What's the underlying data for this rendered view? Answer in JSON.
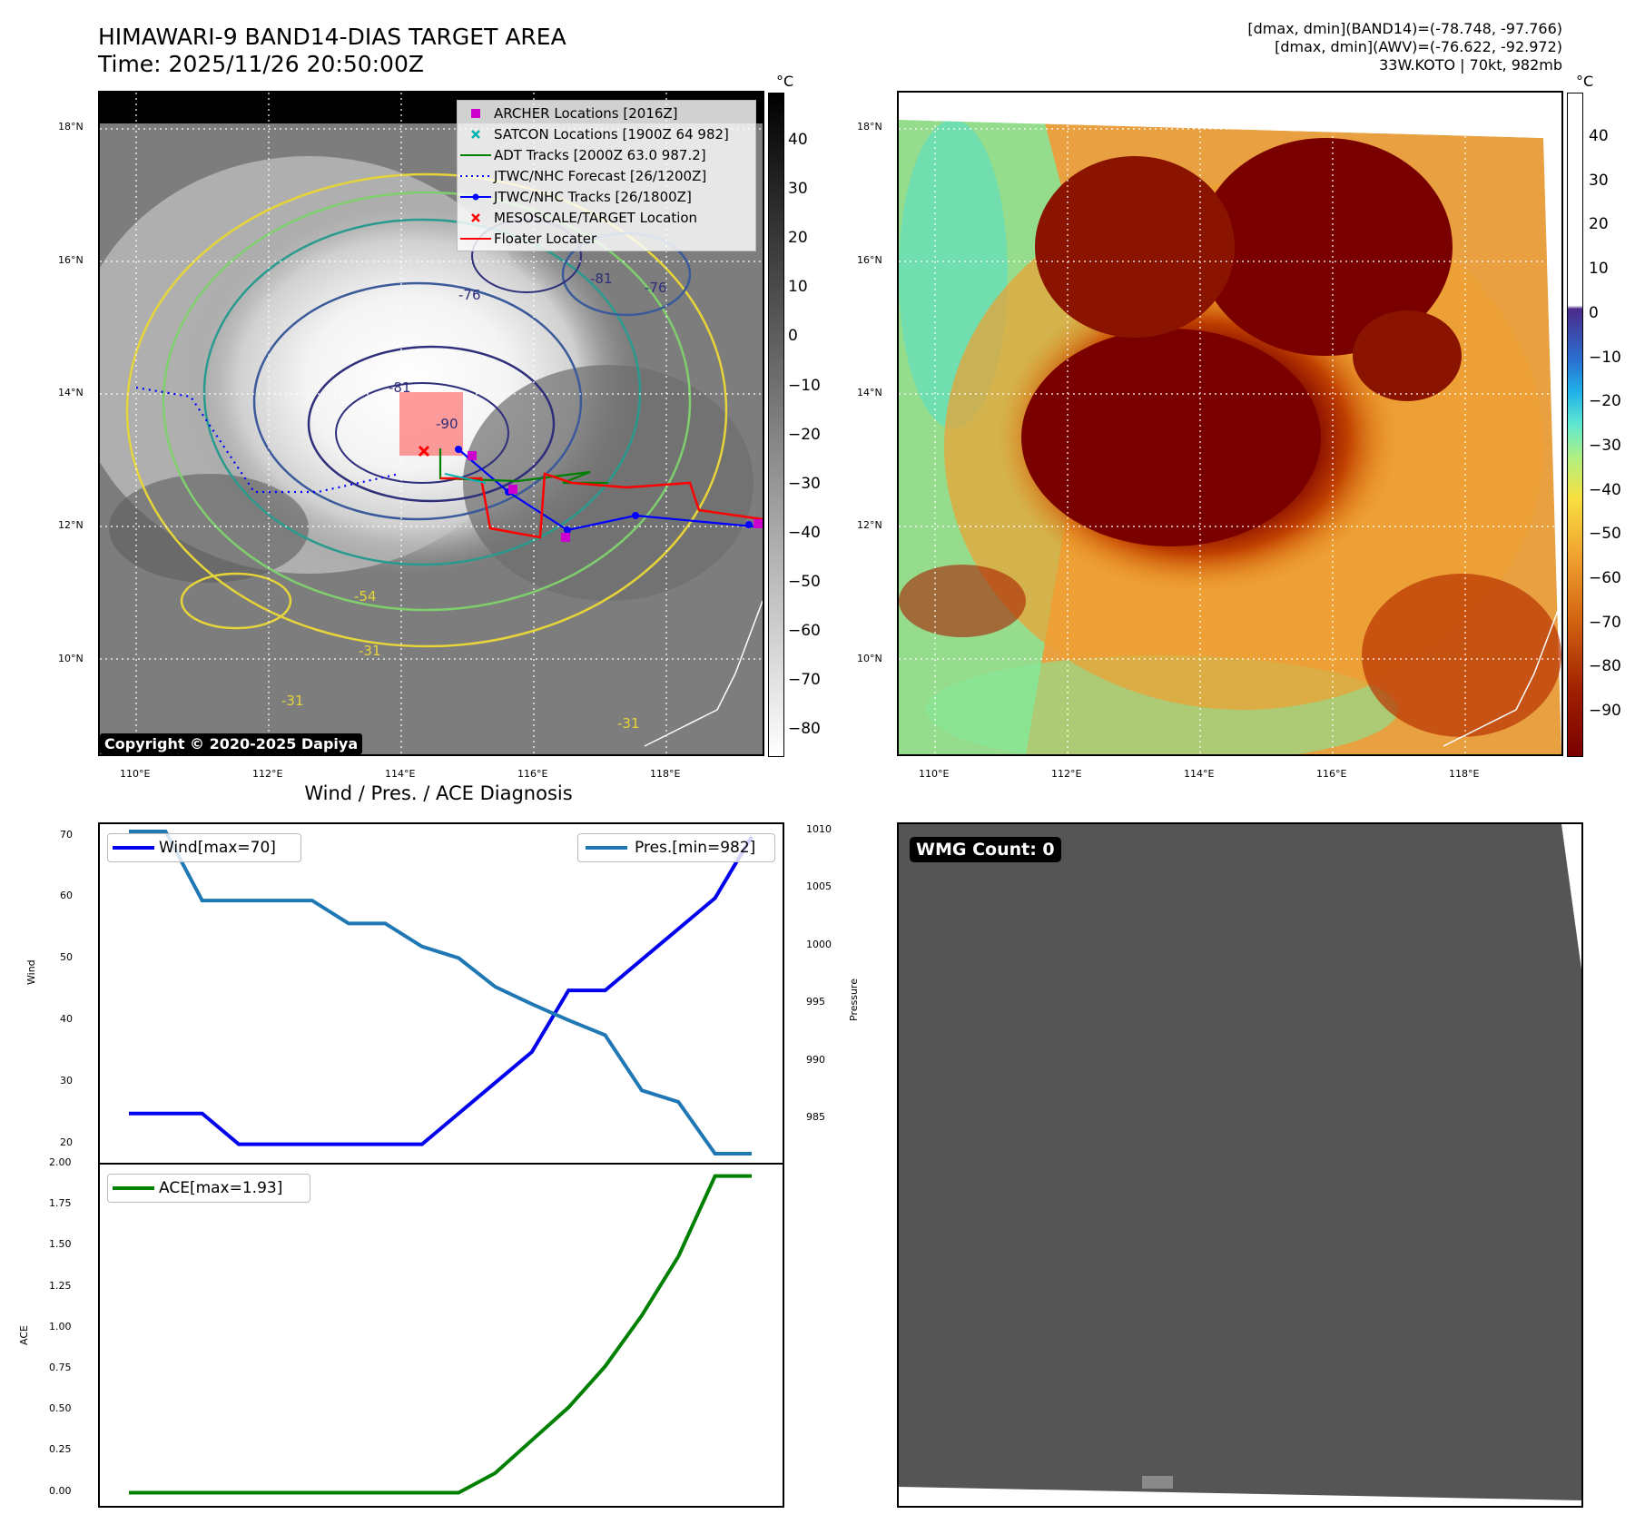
{
  "header": {
    "title_line1": "HIMAWARI-9 BAND14-DIAS TARGET AREA",
    "title_line2": "Time: 2025/11/26 20:50:00Z",
    "info_line1": "[dmax, dmin](BAND14)=(-78.748, -97.766)",
    "info_line2": "[dmax, dmin](AWV)=(-76.622, -92.972)",
    "info_line3": "33W.KOTO | 70kt, 982mb"
  },
  "maps": {
    "lon_ticks": [
      "110°E",
      "112°E",
      "114°E",
      "116°E",
      "118°E"
    ],
    "lat_ticks": [
      "18°N",
      "16°N",
      "14°N",
      "12°N",
      "10°N"
    ],
    "copyright": "Copyright © 2020-2025 Dapiya",
    "contour_labels": [
      "-81",
      "-76",
      "-90",
      "-81",
      "-76",
      "-54",
      "-31",
      "-31",
      "-31"
    ],
    "legend": [
      {
        "label": "ARCHER Locations [2016Z]",
        "color": "#cc00cc",
        "marker": "square"
      },
      {
        "label": "SATCON Locations [1900Z 64 982]",
        "color": "#00b3b3",
        "marker": "x"
      },
      {
        "label": "ADT Tracks [2000Z 63.0 987.2]",
        "color": "#008000",
        "marker": "line"
      },
      {
        "label": "JTWC/NHC Forecast [26/1200Z]",
        "color": "#0000ff",
        "marker": "dotted"
      },
      {
        "label": "JTWC/NHC Tracks [26/1800Z]",
        "color": "#0000ff",
        "marker": "line-dot"
      },
      {
        "label": "MESOSCALE/TARGET Location",
        "color": "#ff0000",
        "marker": "x"
      },
      {
        "label": "Floater Locater",
        "color": "#ff0000",
        "marker": "line"
      }
    ]
  },
  "colorbars": {
    "unit": "°C",
    "left_ticks": [
      "40",
      "30",
      "20",
      "10",
      "0",
      "−10",
      "−20",
      "−30",
      "−40",
      "−50",
      "−60",
      "−70",
      "−80"
    ],
    "right_ticks": [
      "40",
      "30",
      "20",
      "10",
      "0",
      "−10",
      "−20",
      "−30",
      "−40",
      "−50",
      "−60",
      "−70",
      "−80",
      "−90"
    ]
  },
  "diagnosis": {
    "title": "Wind / Pres. / ACE Diagnosis",
    "wind_ylabel": "Wind",
    "pres_ylabel": "Pressure",
    "ace_ylabel": "ACE",
    "wind_legend": "Wind[max=70]",
    "pres_legend": "Pres.[min=982]",
    "ace_legend": "ACE[max=1.93]",
    "wind_ticks": [
      "70",
      "60",
      "50",
      "40",
      "30",
      "20"
    ],
    "pres_ticks": [
      "1010",
      "1005",
      "1000",
      "995",
      "990",
      "985"
    ],
    "ace_ticks": [
      "2.00",
      "1.75",
      "1.50",
      "1.25",
      "1.00",
      "0.75",
      "0.50",
      "0.25",
      "0.00"
    ]
  },
  "wmg": {
    "label": "WMG Count: 0"
  },
  "colors": {
    "wind": "#0000ee",
    "pressure": "#1f77b4",
    "ace": "#008000",
    "wmg_bg": "#555555"
  },
  "chart_data": [
    {
      "type": "line",
      "title": "Wind / Pres. / ACE Diagnosis",
      "x": [
        0,
        1,
        2,
        3,
        4,
        5,
        6,
        7,
        8,
        9,
        10,
        11,
        12,
        13,
        14,
        15,
        16,
        17
      ],
      "series": [
        {
          "name": "Wind[max=70]",
          "axis": "Wind",
          "ylim": [
            17,
            72
          ],
          "values": [
            25,
            25,
            25,
            20,
            20,
            20,
            20,
            20,
            20,
            25,
            30,
            35,
            45,
            45,
            50,
            55,
            60,
            70
          ]
        },
        {
          "name": "Pres.[min=982]",
          "axis": "Pressure",
          "ylim": [
            982,
            1010
          ],
          "values": [
            1010,
            1010,
            1004,
            1004,
            1004,
            1004,
            1002,
            1002,
            1000,
            999,
            996.5,
            995,
            993.6,
            992.3,
            987.5,
            986.5,
            982,
            982
          ]
        }
      ]
    },
    {
      "type": "line",
      "x": [
        0,
        1,
        2,
        3,
        4,
        5,
        6,
        7,
        8,
        9,
        10,
        11,
        12,
        13,
        14,
        15,
        16,
        17
      ],
      "ylim": [
        -0.08,
        2.0
      ],
      "series": [
        {
          "name": "ACE[max=1.93]",
          "values": [
            0,
            0,
            0,
            0,
            0,
            0,
            0,
            0,
            0,
            0,
            0.12,
            0.32,
            0.52,
            0.77,
            1.08,
            1.44,
            1.93,
            1.93
          ]
        }
      ]
    }
  ]
}
